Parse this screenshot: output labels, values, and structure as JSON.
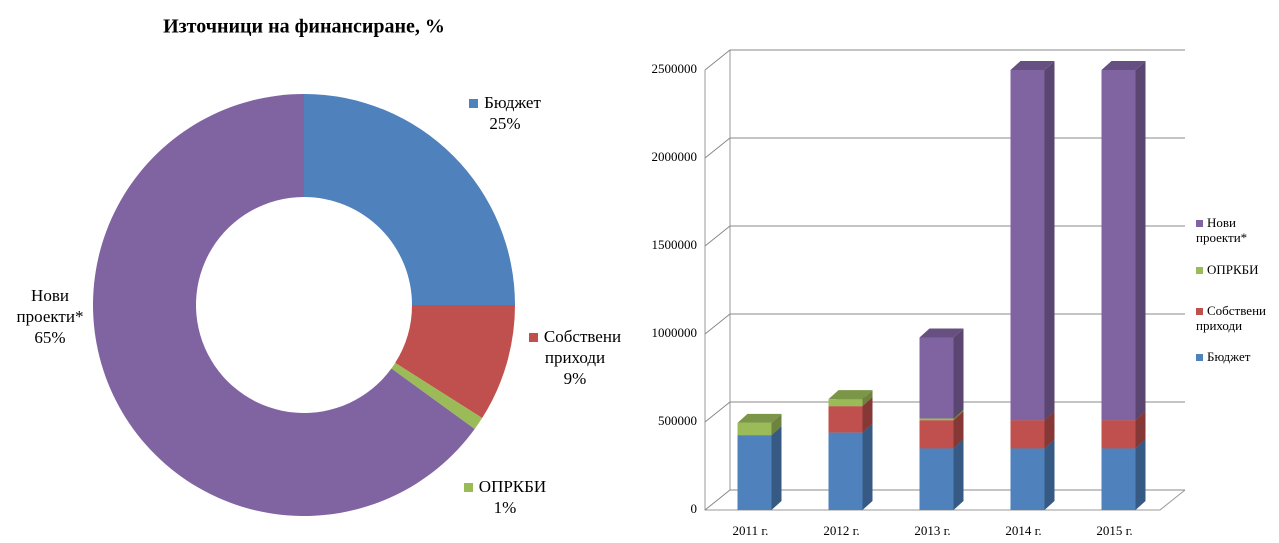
{
  "chart_data": [
    {
      "type": "donut",
      "title": "Източници на финансиране, %",
      "categories": [
        "Бюджет",
        "Собствени приходи",
        "ОПРКБИ",
        "Нови проекти*"
      ],
      "values": [
        25,
        9,
        1,
        65
      ],
      "value_labels": [
        "25%",
        "9%",
        "1%",
        "65%"
      ],
      "colors": [
        "#4f81bd",
        "#c0504d",
        "#9bbb59",
        "#8064a2"
      ]
    },
    {
      "type": "bar3d_stacked",
      "categories": [
        "2011 г.",
        "2012 г.",
        "2013 г.",
        "2014 г.",
        "2015 г."
      ],
      "series": [
        {
          "name": "Бюджет",
          "color": "#4f81bd",
          "values": [
            425000,
            440000,
            350000,
            350000,
            350000
          ]
        },
        {
          "name": "Собствени приходи",
          "color": "#c0504d",
          "values": [
            0,
            150000,
            160000,
            160000,
            160000
          ]
        },
        {
          "name": "ОПРКБИ",
          "color": "#9bbb59",
          "values": [
            70000,
            40000,
            10000,
            0,
            0
          ]
        },
        {
          "name": "Нови проекти*",
          "color": "#8064a2",
          "values": [
            0,
            0,
            460000,
            1990000,
            1990000
          ]
        }
      ],
      "ylim": [
        0,
        2500000
      ],
      "yticks": [
        0,
        500000,
        1000000,
        1500000,
        2000000,
        2500000
      ],
      "grid": true
    }
  ]
}
